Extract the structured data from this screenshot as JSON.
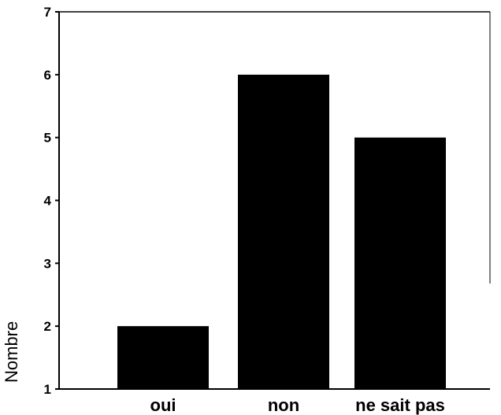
{
  "chart_data": {
    "type": "bar",
    "categories": [
      "oui",
      "non",
      "ne sait pas"
    ],
    "values": [
      2,
      6,
      5
    ],
    "ylabel": "Nombre",
    "xlabel": "",
    "ylim": [
      1,
      7
    ],
    "yticks": [
      1,
      2,
      3,
      4,
      5,
      6,
      7
    ],
    "grid": false,
    "bar_color": "#000000"
  }
}
